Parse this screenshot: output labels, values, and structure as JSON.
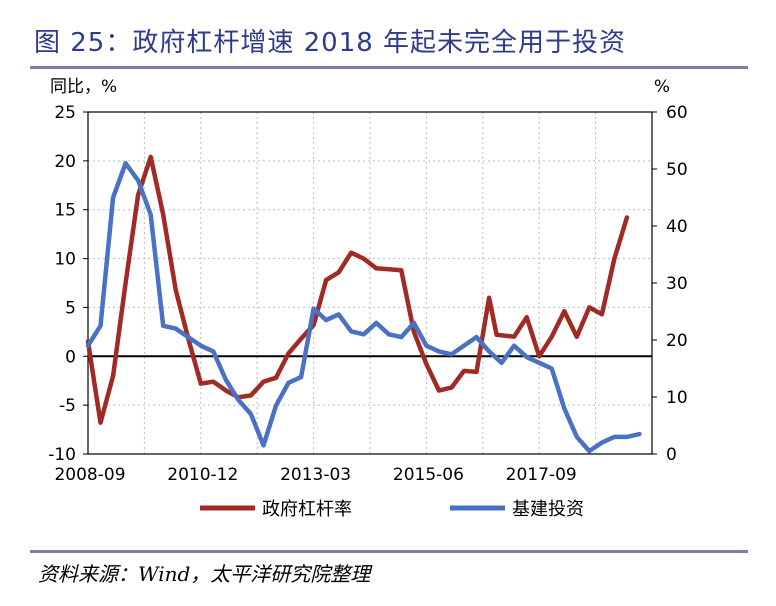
{
  "header": {
    "title": "图 25：政府杠杆增速 2018 年起未完全用于投资"
  },
  "footer": {
    "source": "资料来源：Wind，太平洋研究院整理"
  },
  "chart_data": {
    "type": "line",
    "left_axis": {
      "unit": "同比，%",
      "ylim": [
        -10,
        25
      ],
      "ticks": [
        -10,
        -5,
        0,
        5,
        10,
        15,
        20,
        25
      ]
    },
    "right_axis": {
      "unit": "%",
      "ylim": [
        0,
        60
      ],
      "ticks": [
        0,
        10,
        20,
        30,
        40,
        50,
        60
      ]
    },
    "x_tick_labels": [
      "2008-09",
      "2010-12",
      "2013-03",
      "2015-06",
      "2017-09"
    ],
    "x_range": [
      2008.75,
      2020.0
    ],
    "grid": "dotted vertical and horizontal",
    "legend_position": "bottom",
    "series": [
      {
        "name": "政府杠杆率",
        "axis": "left",
        "color": "#a12a24",
        "points": [
          [
            2008.75,
            1.5
          ],
          [
            2009.0,
            -6.8
          ],
          [
            2009.25,
            -2.0
          ],
          [
            2009.5,
            7.5
          ],
          [
            2009.75,
            16.5
          ],
          [
            2010.0,
            20.4
          ],
          [
            2010.25,
            14.5
          ],
          [
            2010.5,
            6.8
          ],
          [
            2010.75,
            1.8
          ],
          [
            2011.0,
            -2.8
          ],
          [
            2011.25,
            -2.6
          ],
          [
            2011.5,
            -3.5
          ],
          [
            2011.75,
            -4.2
          ],
          [
            2012.0,
            -4.0
          ],
          [
            2012.25,
            -2.6
          ],
          [
            2012.5,
            -2.2
          ],
          [
            2012.75,
            0.3
          ],
          [
            2013.0,
            1.8
          ],
          [
            2013.25,
            3.2
          ],
          [
            2013.5,
            7.8
          ],
          [
            2013.75,
            8.6
          ],
          [
            2014.0,
            10.6
          ],
          [
            2014.25,
            10.0
          ],
          [
            2014.5,
            9.0
          ],
          [
            2014.75,
            8.9
          ],
          [
            2015.0,
            8.8
          ],
          [
            2015.25,
            2.5
          ],
          [
            2015.5,
            -0.8
          ],
          [
            2015.75,
            -3.5
          ],
          [
            2016.0,
            -3.2
          ],
          [
            2016.25,
            -1.5
          ],
          [
            2016.5,
            -1.6
          ],
          [
            2016.75,
            6.0
          ],
          [
            2016.9,
            2.2
          ],
          [
            2017.25,
            2.0
          ],
          [
            2017.5,
            4.0
          ],
          [
            2017.75,
            0.0
          ],
          [
            2018.0,
            2.0
          ],
          [
            2018.25,
            4.6
          ],
          [
            2018.5,
            2.0
          ],
          [
            2018.75,
            5.0
          ],
          [
            2019.0,
            4.3
          ],
          [
            2019.25,
            10.0
          ],
          [
            2019.5,
            14.2
          ]
        ]
      },
      {
        "name": "基建投资",
        "axis": "right",
        "color": "#4a72c4",
        "points": [
          [
            2008.75,
            19.0
          ],
          [
            2009.0,
            22.5
          ],
          [
            2009.25,
            45.0
          ],
          [
            2009.5,
            51.0
          ],
          [
            2009.75,
            48.0
          ],
          [
            2010.0,
            42.0
          ],
          [
            2010.25,
            22.5
          ],
          [
            2010.5,
            22.0
          ],
          [
            2010.75,
            20.5
          ],
          [
            2011.0,
            19.0
          ],
          [
            2011.25,
            18.0
          ],
          [
            2011.5,
            13.0
          ],
          [
            2011.75,
            9.5
          ],
          [
            2012.0,
            7.0
          ],
          [
            2012.25,
            1.5
          ],
          [
            2012.5,
            8.5
          ],
          [
            2012.75,
            12.5
          ],
          [
            2013.0,
            13.5
          ],
          [
            2013.25,
            25.5
          ],
          [
            2013.5,
            23.5
          ],
          [
            2013.75,
            24.5
          ],
          [
            2014.0,
            21.5
          ],
          [
            2014.25,
            21.0
          ],
          [
            2014.5,
            23.0
          ],
          [
            2014.75,
            21.0
          ],
          [
            2015.0,
            20.5
          ],
          [
            2015.25,
            23.0
          ],
          [
            2015.5,
            19.0
          ],
          [
            2015.75,
            18.0
          ],
          [
            2016.0,
            17.5
          ],
          [
            2016.25,
            19.0
          ],
          [
            2016.5,
            20.5
          ],
          [
            2016.75,
            18.0
          ],
          [
            2017.0,
            16.0
          ],
          [
            2017.25,
            19.0
          ],
          [
            2017.5,
            17.0
          ],
          [
            2017.75,
            16.0
          ],
          [
            2018.0,
            15.0
          ],
          [
            2018.25,
            8.0
          ],
          [
            2018.5,
            3.0
          ],
          [
            2018.75,
            0.5
          ],
          [
            2019.0,
            2.0
          ],
          [
            2019.25,
            3.0
          ],
          [
            2019.5,
            3.0
          ],
          [
            2019.75,
            3.5
          ]
        ]
      }
    ]
  }
}
